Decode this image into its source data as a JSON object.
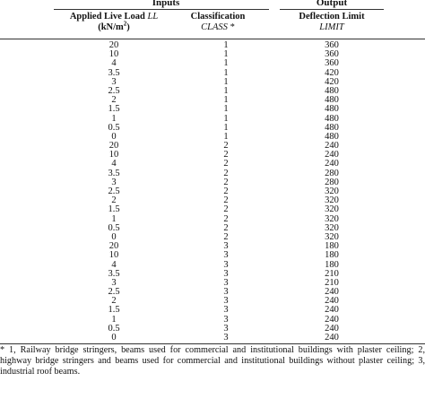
{
  "table": {
    "groups": [
      "Inputs",
      "Output"
    ],
    "header": {
      "load": {
        "name": "Applied Live Load",
        "symbol": "LL",
        "unit": "(kN/m",
        "exponent": "2",
        "close": ")"
      },
      "class": {
        "name": "Classification",
        "symbol": "CLASS",
        "mark": "*"
      },
      "limit": {
        "name": "Deflection Limit",
        "symbol": "LIMIT"
      }
    },
    "rows": [
      [
        20,
        1,
        360
      ],
      [
        10,
        1,
        360
      ],
      [
        4,
        1,
        360
      ],
      [
        3.5,
        1,
        420
      ],
      [
        3,
        1,
        420
      ],
      [
        2.5,
        1,
        480
      ],
      [
        2,
        1,
        480
      ],
      [
        1.5,
        1,
        480
      ],
      [
        1,
        1,
        480
      ],
      [
        0.5,
        1,
        480
      ],
      [
        0,
        1,
        480
      ],
      [
        20,
        2,
        240
      ],
      [
        10,
        2,
        240
      ],
      [
        4,
        2,
        240
      ],
      [
        3.5,
        2,
        280
      ],
      [
        3,
        2,
        280
      ],
      [
        2.5,
        2,
        320
      ],
      [
        2,
        2,
        320
      ],
      [
        1.5,
        2,
        320
      ],
      [
        1,
        2,
        320
      ],
      [
        0.5,
        2,
        320
      ],
      [
        0,
        2,
        320
      ],
      [
        20,
        3,
        180
      ],
      [
        10,
        3,
        180
      ],
      [
        4,
        3,
        180
      ],
      [
        3.5,
        3,
        210
      ],
      [
        3,
        3,
        210
      ],
      [
        2.5,
        3,
        240
      ],
      [
        2,
        3,
        240
      ],
      [
        1.5,
        3,
        240
      ],
      [
        1,
        3,
        240
      ],
      [
        0.5,
        3,
        240
      ],
      [
        0,
        3,
        240
      ]
    ],
    "footnote": "* 1, Railway bridge stringers, beams used for commercial and institutional buildings with plaster ceiling; 2, highway bridge stringers and beams used for commercial and institutional buildings without plaster ceiling; 3, industrial roof beams."
  }
}
